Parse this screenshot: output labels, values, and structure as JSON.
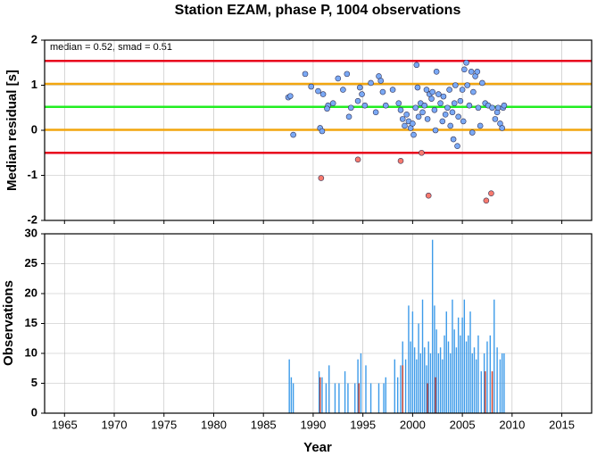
{
  "chart_data": [
    {
      "type": "scatter",
      "title": "Station EZAM, phase P, 1004 observations",
      "y_label": "Median residual [s]",
      "annotation": "median = 0.52, smad = 0.51",
      "xlim": [
        1963,
        2018
      ],
      "xticks": [
        1965,
        1970,
        1975,
        1980,
        1985,
        1990,
        1995,
        2000,
        2005,
        2010,
        2015
      ],
      "ylim": [
        -2,
        2
      ],
      "yticks": [
        -2,
        -1,
        0,
        1,
        2
      ],
      "grid": true,
      "hlines": [
        {
          "value": 1.54,
          "color": "#e8001c"
        },
        {
          "value": 1.03,
          "color": "#f2a60f"
        },
        {
          "value": 0.52,
          "color": "#22ee22"
        },
        {
          "value": 0.01,
          "color": "#f2a60f"
        },
        {
          "value": -0.5,
          "color": "#e8001c"
        }
      ],
      "series": [
        {
          "color": "#7aa9f5",
          "x": [
            1987.5,
            1987.7,
            1988,
            1989.2,
            1989.8,
            1990.5,
            1990.7,
            1990.9,
            1991,
            1991.5,
            1991.4,
            1992,
            1992.5,
            1993,
            1993.4,
            1993.6,
            1993.8,
            1994.5,
            1994.7,
            1994.9,
            1995.2,
            1995.8,
            1996.3,
            1996.6,
            1996.8,
            1997,
            1997.3,
            1998,
            1998.6,
            1998.8,
            1999,
            1999.2,
            1999.4,
            1999.6,
            1999.8,
            2000,
            2000.1,
            2000.3,
            2000.4,
            2000.5,
            2000.6,
            2000.8,
            2001,
            2001.2,
            2001.4,
            2001.5,
            2001.7,
            2001.9,
            2002,
            2002.2,
            2002.3,
            2002.4,
            2002.6,
            2002.8,
            2003,
            2003.1,
            2003.3,
            2003.5,
            2003.7,
            2003.8,
            2004,
            2004.1,
            2004.2,
            2004.3,
            2004.5,
            2004.6,
            2004.8,
            2005,
            2005.1,
            2005.2,
            2005.4,
            2005.5,
            2005.7,
            2005.9,
            2006,
            2006.1,
            2006.3,
            2006.5,
            2006.6,
            2006.8,
            2007,
            2007.3,
            2007.6,
            2008,
            2008.3,
            2008.5,
            2008.6,
            2008.8,
            2009,
            2009.1,
            2009.2
          ],
          "values": [
            0.73,
            0.76,
            -0.1,
            1.25,
            0.97,
            0.87,
            0.05,
            -0.02,
            0.8,
            0.55,
            0.48,
            0.6,
            1.15,
            0.9,
            1.25,
            0.3,
            0.5,
            0.65,
            0.95,
            0.8,
            0.55,
            1.05,
            0.4,
            1.2,
            1.1,
            0.85,
            0.55,
            0.9,
            0.6,
            0.45,
            0.25,
            0.1,
            0.35,
            0.2,
            0.05,
            0.15,
            -0.1,
            0.5,
            1.45,
            0.95,
            0.3,
            0.6,
            0.4,
            0.55,
            0.9,
            0.25,
            0.8,
            0.7,
            0.85,
            0.45,
            0.0,
            1.3,
            0.8,
            0.6,
            0.2,
            0.75,
            0.35,
            0.5,
            0.9,
            0.1,
            0.4,
            -0.2,
            0.6,
            1.0,
            -0.35,
            0.3,
            0.65,
            0.9,
            0.2,
            1.35,
            1.5,
            1.0,
            0.55,
            1.3,
            -0.05,
            0.85,
            1.2,
            1.3,
            0.5,
            0.1,
            1.05,
            0.6,
            0.55,
            0.5,
            0.25,
            0.4,
            0.5,
            0.15,
            0.05,
            0.5,
            0.55
          ]
        },
        {
          "color": "#f77a6e",
          "x": [
            1990.8,
            1994.5,
            1998.8,
            2000.9,
            2001.6,
            2007.4,
            2007.9
          ],
          "values": [
            -1.06,
            -0.65,
            -0.68,
            -0.5,
            -1.45,
            -1.56,
            -1.4
          ]
        }
      ]
    },
    {
      "type": "bar",
      "y_label": "Observations",
      "x_label": "Year",
      "xlim": [
        1963,
        2018
      ],
      "xticks": [
        1965,
        1970,
        1975,
        1980,
        1985,
        1990,
        1995,
        2000,
        2005,
        2010,
        2015
      ],
      "ylim": [
        0,
        30
      ],
      "yticks": [
        0,
        5,
        10,
        15,
        20,
        25,
        30
      ],
      "grid": true,
      "series": [
        {
          "color": "#3d9be9",
          "x": [
            1987.6,
            1987.8,
            1988,
            1990.6,
            1990.9,
            1991.3,
            1991.6,
            1992.2,
            1992.6,
            1993.2,
            1993.5,
            1994.2,
            1994.5,
            1994.8,
            1995.3,
            1995.8,
            1996.6,
            1997.1,
            1997.3,
            1998.2,
            1998.5,
            1998.8,
            1999,
            1999.3,
            1999.6,
            1999.8,
            2000,
            2000.2,
            2000.4,
            2000.6,
            2000.8,
            2001,
            2001.2,
            2001.4,
            2001.6,
            2001.8,
            2002,
            2002.2,
            2002.4,
            2002.6,
            2002.8,
            2003,
            2003.2,
            2003.4,
            2003.6,
            2003.8,
            2004,
            2004.2,
            2004.4,
            2004.6,
            2004.8,
            2005,
            2005.2,
            2005.4,
            2005.6,
            2005.8,
            2006,
            2006.2,
            2006.4,
            2006.6,
            2006.9,
            2007.2,
            2007.5,
            2007.8,
            2008.2,
            2008.5,
            2008.8,
            2009,
            2009.2
          ],
          "values": [
            9,
            6,
            5,
            7,
            6,
            5,
            8,
            5,
            5,
            7,
            5,
            5,
            9,
            10,
            8,
            5,
            5,
            5,
            6,
            9,
            6,
            8,
            12,
            9,
            18,
            12,
            17,
            11,
            9,
            15,
            10,
            19,
            11,
            8,
            12,
            10,
            29,
            18,
            14,
            10,
            11,
            9,
            13,
            17,
            12,
            10,
            19,
            14,
            11,
            16,
            13,
            16,
            19,
            12,
            13,
            17,
            10,
            11,
            9,
            13,
            7,
            10,
            12,
            13,
            19,
            11,
            9,
            10,
            10
          ]
        },
        {
          "color": "#c0392b",
          "x": [
            1990.7,
            1994.6,
            1999,
            2001.5,
            2002.3,
            2007.3,
            2008
          ],
          "values": [
            6,
            5,
            8,
            5,
            6,
            7,
            7
          ]
        }
      ]
    }
  ]
}
